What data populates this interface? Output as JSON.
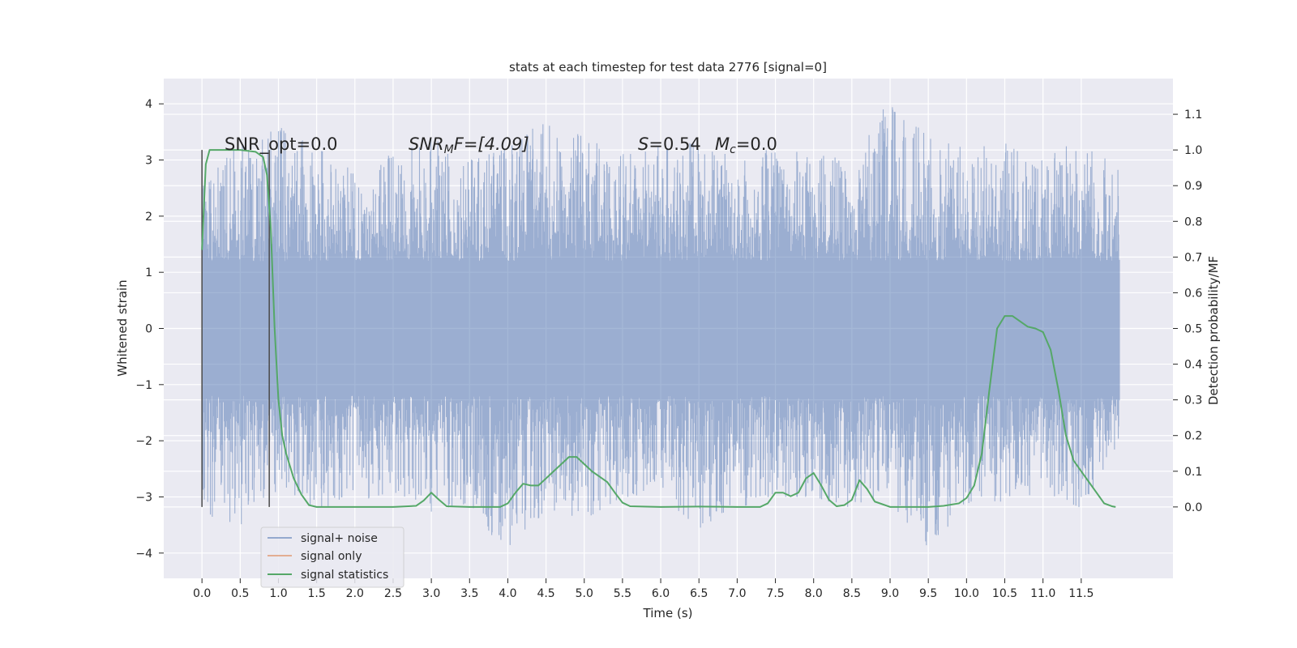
{
  "chart_data": {
    "type": "line",
    "title": "stats at each timestep for test data 2776 [signal=0]",
    "xlabel": "Time (s)",
    "ylabel_left": "Whitened strain",
    "ylabel_right": "Detection probability/MF",
    "xlim": [
      -0.5,
      12.7
    ],
    "ylim_left": [
      -4.45,
      4.45
    ],
    "ylim_right": [
      -0.2,
      1.2
    ],
    "x_ticks": [
      0.0,
      0.5,
      1.0,
      1.5,
      2.0,
      2.5,
      3.0,
      3.5,
      4.0,
      4.5,
      5.0,
      5.5,
      6.0,
      6.5,
      7.0,
      7.5,
      8.0,
      8.5,
      9.0,
      9.5,
      10.0,
      10.5,
      11.0,
      11.5
    ],
    "x_tick_labels": [
      "0.0",
      "0.5",
      "1.0",
      "1.5",
      "2.0",
      "2.5",
      "3.0",
      "3.5",
      "4.0",
      "4.5",
      "5.0",
      "5.5",
      "6.0",
      "6.5",
      "7.0",
      "7.5",
      "8.0",
      "8.5",
      "9.0",
      "9.5",
      "10.0",
      "10.5",
      "11.0",
      "11.5"
    ],
    "y_left_ticks": [
      -4,
      -3,
      -2,
      -1,
      0,
      1,
      2,
      3,
      4
    ],
    "y_left_tick_labels": [
      "−4",
      "−3",
      "−2",
      "−1",
      "0",
      "1",
      "2",
      "3",
      "4"
    ],
    "y_right_ticks": [
      0.0,
      0.1,
      0.2,
      0.3,
      0.4,
      0.5,
      0.6,
      0.7,
      0.8,
      0.9,
      1.0,
      1.1
    ],
    "y_right_tick_labels": [
      "0.0",
      "0.1",
      "0.2",
      "0.3",
      "0.4",
      "0.5",
      "0.6",
      "0.7",
      "0.8",
      "0.9",
      "1.0",
      "1.1"
    ],
    "grid": true,
    "legend_position": "lower-left",
    "annotations": {
      "snr_opt": "SNR_opt=0.0",
      "snr_mf_main": "SNR",
      "snr_mf_sub": "M",
      "snr_mf_rest": "F=[4.09]",
      "s_main": "S",
      "s_rest": "=0.54",
      "mc_main": "M",
      "mc_sub": "c",
      "mc_rest": "=0.0"
    },
    "vertical_lines": [
      0.0,
      0.88
    ],
    "series": [
      {
        "name": "signal+ noise",
        "color": "#4c72b0",
        "opacity": 0.5,
        "x_range": [
          0.0,
          12.0
        ],
        "envelope": {
          "x": [
            0.0,
            0.5,
            1.0,
            1.5,
            2.0,
            2.5,
            3.0,
            3.5,
            4.0,
            4.5,
            5.0,
            5.5,
            6.0,
            6.5,
            7.0,
            7.5,
            8.0,
            8.5,
            9.0,
            9.5,
            10.0,
            10.5,
            11.0,
            11.5,
            12.0
          ],
          "upper": [
            2.6,
            3.3,
            3.6,
            3.2,
            2.9,
            3.1,
            3.4,
            3.0,
            3.2,
            3.75,
            3.4,
            3.1,
            3.3,
            3.3,
            3.1,
            3.2,
            3.1,
            3.0,
            4.1,
            3.4,
            3.2,
            3.3,
            3.0,
            3.4,
            2.8
          ],
          "lower": [
            -3.3,
            -3.5,
            -3.0,
            -3.2,
            -3.1,
            -2.9,
            -3.3,
            -3.1,
            -4.1,
            -3.2,
            -3.4,
            -3.0,
            -3.0,
            -3.6,
            -3.2,
            -3.0,
            -3.0,
            -3.2,
            -3.1,
            -3.9,
            -3.2,
            -3.1,
            -2.9,
            -3.2,
            -2.0
          ]
        }
      },
      {
        "name": "signal only",
        "color": "#dd8452",
        "values": []
      },
      {
        "name": "signal statistics",
        "color": "#55a868",
        "x": [
          0.0,
          0.05,
          0.1,
          0.15,
          0.2,
          0.3,
          0.5,
          0.7,
          0.8,
          0.85,
          0.9,
          0.95,
          1.0,
          1.05,
          1.1,
          1.2,
          1.3,
          1.4,
          1.5,
          1.6,
          1.8,
          2.0,
          2.5,
          2.8,
          2.9,
          3.0,
          3.1,
          3.2,
          3.5,
          3.9,
          4.0,
          4.1,
          4.2,
          4.3,
          4.4,
          4.5,
          4.6,
          4.7,
          4.8,
          4.9,
          5.0,
          5.1,
          5.2,
          5.3,
          5.4,
          5.5,
          5.6,
          6.0,
          6.5,
          7.0,
          7.3,
          7.4,
          7.5,
          7.6,
          7.7,
          7.8,
          7.9,
          8.0,
          8.1,
          8.2,
          8.3,
          8.4,
          8.5,
          8.6,
          8.7,
          8.8,
          9.0,
          9.5,
          9.7,
          9.9,
          10.0,
          10.1,
          10.2,
          10.3,
          10.4,
          10.5,
          10.6,
          10.7,
          10.8,
          10.9,
          11.0,
          11.1,
          11.2,
          11.3,
          11.4,
          11.5,
          11.6,
          11.7,
          11.8,
          11.9,
          11.95
        ],
        "values": [
          0.72,
          0.96,
          1.0,
          1.0,
          1.0,
          1.0,
          1.0,
          0.995,
          0.98,
          0.93,
          0.78,
          0.5,
          0.3,
          0.2,
          0.15,
          0.08,
          0.035,
          0.005,
          0.0,
          0.0,
          0.0,
          0.0,
          0.0,
          0.003,
          0.018,
          0.04,
          0.02,
          0.002,
          0.0,
          0.0,
          0.01,
          0.04,
          0.065,
          0.06,
          0.06,
          0.08,
          0.1,
          0.12,
          0.14,
          0.14,
          0.12,
          0.1,
          0.085,
          0.07,
          0.04,
          0.012,
          0.002,
          0.0,
          0.001,
          0.0,
          0.0,
          0.01,
          0.04,
          0.04,
          0.03,
          0.04,
          0.08,
          0.095,
          0.06,
          0.02,
          0.002,
          0.005,
          0.02,
          0.075,
          0.05,
          0.015,
          0.0,
          0.0,
          0.003,
          0.01,
          0.025,
          0.06,
          0.15,
          0.33,
          0.5,
          0.535,
          0.535,
          0.52,
          0.505,
          0.5,
          0.49,
          0.44,
          0.33,
          0.2,
          0.13,
          0.1,
          0.07,
          0.04,
          0.01,
          0.002,
          0.0
        ]
      }
    ]
  }
}
